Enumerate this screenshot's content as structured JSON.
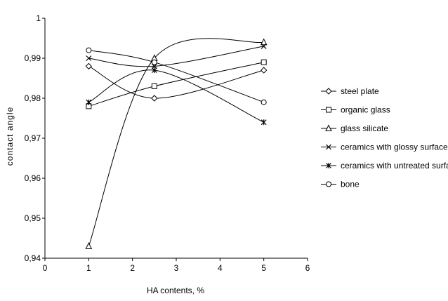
{
  "chart_data": {
    "type": "line",
    "xlabel": "HA contents, %",
    "ylabel": "contact angle",
    "xlim": [
      0,
      6
    ],
    "ylim": [
      0.94,
      1
    ],
    "x_ticks": [
      0,
      1,
      2,
      3,
      4,
      5,
      6
    ],
    "x_tick_labels": [
      "0",
      "1",
      "2",
      "3",
      "4",
      "5",
      "6"
    ],
    "y_ticks": [
      0.94,
      0.95,
      0.96,
      0.97,
      0.98,
      0.99,
      1
    ],
    "y_tick_labels": [
      "0,94",
      "0,95",
      "0,96",
      "0,97",
      "0,98",
      "0,99",
      "1"
    ],
    "grid": false,
    "legend_position": "right",
    "line_color": "#000000",
    "series": [
      {
        "name": "steel plate",
        "marker": "diamond",
        "x": [
          1,
          2.5,
          5
        ],
        "y": [
          0.988,
          0.98,
          0.987
        ]
      },
      {
        "name": "organic glass",
        "marker": "square",
        "x": [
          1,
          2.5,
          5
        ],
        "y": [
          0.978,
          0.983,
          0.989
        ]
      },
      {
        "name": "glass silicate",
        "marker": "triangle",
        "x": [
          1,
          2.5,
          5
        ],
        "y": [
          0.943,
          0.99,
          0.994
        ]
      },
      {
        "name": "ceramics with glossy surface",
        "marker": "x",
        "x": [
          1,
          2.5,
          5
        ],
        "y": [
          0.99,
          0.988,
          0.993
        ]
      },
      {
        "name": "ceramics with untreated surface",
        "marker": "star",
        "x": [
          1,
          2.5,
          5
        ],
        "y": [
          0.979,
          0.987,
          0.974
        ]
      },
      {
        "name": "bone",
        "marker": "circle",
        "x": [
          1,
          2.5,
          5
        ],
        "y": [
          0.992,
          0.989,
          0.979
        ]
      }
    ]
  }
}
